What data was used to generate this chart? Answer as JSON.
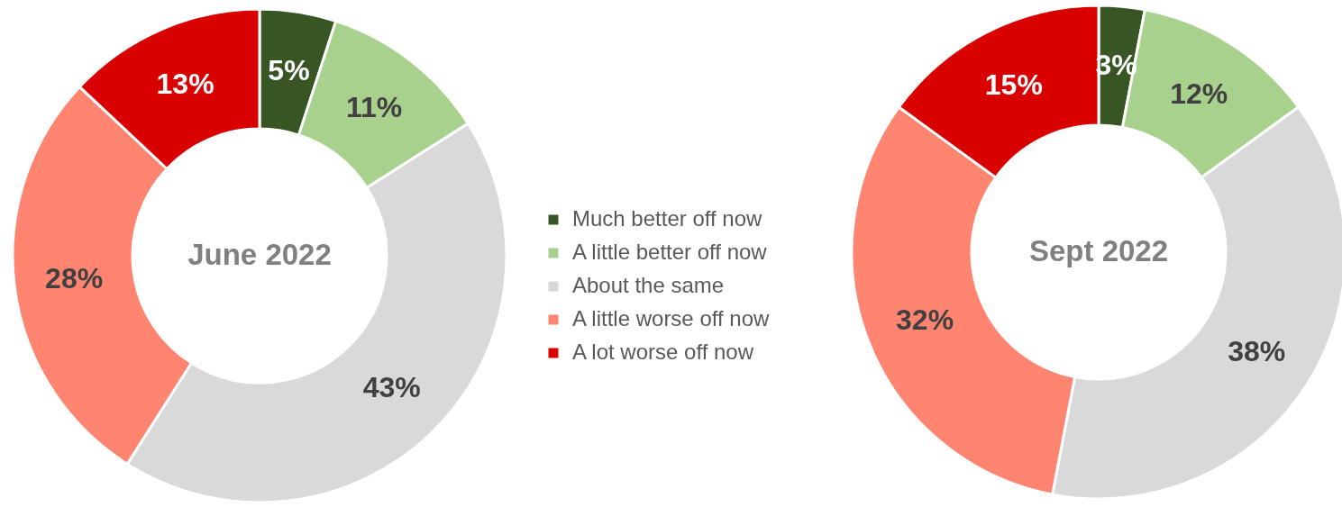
{
  "chart_data": [
    {
      "type": "donut",
      "title": "June 2022",
      "categories": [
        "Much better off now",
        "A little better off now",
        "About the same",
        "A little worse off now",
        "A lot worse off now"
      ],
      "values": [
        5,
        11,
        43,
        28,
        13
      ],
      "value_labels": [
        "5%",
        "11%",
        "43%",
        "28%",
        "13%"
      ],
      "colors": [
        "#375623",
        "#a9d18e",
        "#d9d9d9",
        "#ff8570",
        "#d90000"
      ],
      "legend": "right"
    },
    {
      "type": "donut",
      "title": "Sept 2022",
      "categories": [
        null,
        null,
        null,
        null,
        null
      ],
      "values": [
        3,
        12,
        38,
        32,
        15
      ],
      "value_labels": [
        "3%",
        "12%",
        "38%",
        "32%",
        "15%"
      ],
      "colors": [
        "#375623",
        "#a9d18e",
        "#d9d9d9",
        "#ff8570",
        "#d90000"
      ]
    }
  ]
}
